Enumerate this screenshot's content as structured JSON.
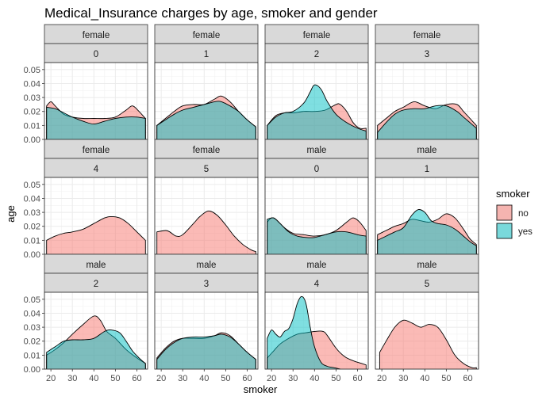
{
  "chart_data": {
    "type": "area",
    "title": "Medical_Insurance charges by age, smoker and gender",
    "xlabel": "smoker",
    "ylabel": "age",
    "xlim": [
      17,
      65
    ],
    "ylim": [
      0,
      0.055
    ],
    "x_ticks": [
      20,
      30,
      40,
      50,
      60
    ],
    "y_ticks": [
      0.0,
      0.01,
      0.02,
      0.03,
      0.04,
      0.05
    ],
    "y_tick_labels": [
      "0.00",
      "0.01",
      "0.02",
      "0.03",
      "0.04",
      "0.05"
    ],
    "grid": true,
    "legend": {
      "title": "smoker",
      "position": "right",
      "entries": [
        {
          "label": "no",
          "color": "#F8766D"
        },
        {
          "label": "yes",
          "color": "#00BFC4"
        }
      ]
    },
    "colors": {
      "no": "#F8766D",
      "yes": "#00BFC4"
    },
    "panels": [
      {
        "gender": "female",
        "children": "0",
        "series": [
          {
            "name": "no",
            "x": [
              18,
              20,
              22,
              26,
              30,
              35,
              40,
              45,
              50,
              55,
              58,
              61,
              64
            ],
            "y": [
              0.024,
              0.027,
              0.024,
              0.018,
              0.016,
              0.015,
              0.015,
              0.015,
              0.016,
              0.021,
              0.024,
              0.02,
              0.015
            ]
          },
          {
            "name": "yes",
            "x": [
              18,
              22,
              26,
              30,
              35,
              40,
              45,
              50,
              55,
              60,
              64
            ],
            "y": [
              0.023,
              0.022,
              0.019,
              0.016,
              0.013,
              0.011,
              0.013,
              0.015,
              0.016,
              0.016,
              0.015
            ]
          }
        ]
      },
      {
        "gender": "female",
        "children": "1",
        "series": [
          {
            "name": "no",
            "x": [
              18,
              22,
              26,
              30,
              35,
              40,
              45,
              48,
              52,
              56,
              60,
              64
            ],
            "y": [
              0.01,
              0.015,
              0.02,
              0.024,
              0.025,
              0.025,
              0.029,
              0.031,
              0.027,
              0.02,
              0.014,
              0.009
            ]
          },
          {
            "name": "yes",
            "x": [
              18,
              22,
              26,
              30,
              35,
              40,
              45,
              48,
              52,
              56,
              60,
              64
            ],
            "y": [
              0.01,
              0.014,
              0.018,
              0.021,
              0.023,
              0.025,
              0.027,
              0.027,
              0.024,
              0.02,
              0.014,
              0.009
            ]
          }
        ]
      },
      {
        "gender": "female",
        "children": "2",
        "series": [
          {
            "name": "no",
            "x": [
              18,
              22,
              26,
              30,
              35,
              40,
              45,
              50,
              52,
              55,
              58,
              61,
              64
            ],
            "y": [
              0.01,
              0.017,
              0.019,
              0.019,
              0.02,
              0.02,
              0.021,
              0.025,
              0.025,
              0.02,
              0.012,
              0.008,
              0.008
            ]
          },
          {
            "name": "yes",
            "x": [
              18,
              22,
              26,
              30,
              35,
              38,
              40,
              43,
              46,
              50,
              55,
              60,
              64
            ],
            "y": [
              0.01,
              0.016,
              0.019,
              0.02,
              0.026,
              0.034,
              0.039,
              0.036,
              0.027,
              0.018,
              0.012,
              0.008,
              0.006
            ]
          }
        ]
      },
      {
        "gender": "female",
        "children": "3",
        "series": [
          {
            "name": "no",
            "x": [
              18,
              22,
              26,
              30,
              35,
              40,
              45,
              50,
              55,
              58,
              61,
              64
            ],
            "y": [
              0.01,
              0.015,
              0.02,
              0.023,
              0.027,
              0.024,
              0.022,
              0.025,
              0.025,
              0.02,
              0.015,
              0.01
            ]
          },
          {
            "name": "yes",
            "x": [
              18,
              22,
              26,
              30,
              35,
              40,
              45,
              50,
              55,
              58,
              61,
              64
            ],
            "y": [
              0.005,
              0.012,
              0.018,
              0.021,
              0.022,
              0.022,
              0.024,
              0.024,
              0.02,
              0.016,
              0.012,
              0.008
            ]
          }
        ]
      },
      {
        "gender": "female",
        "children": "4",
        "series": [
          {
            "name": "no",
            "x": [
              18,
              22,
              26,
              30,
              35,
              40,
              45,
              48,
              52,
              56,
              60,
              64
            ],
            "y": [
              0.01,
              0.013,
              0.015,
              0.016,
              0.018,
              0.022,
              0.026,
              0.027,
              0.026,
              0.022,
              0.016,
              0.01
            ]
          }
        ]
      },
      {
        "gender": "female",
        "children": "5",
        "series": [
          {
            "name": "no",
            "x": [
              18,
              22,
              24,
              27,
              30,
              35,
              38,
              42,
              46,
              50,
              54,
              58,
              62,
              64
            ],
            "y": [
              0.016,
              0.017,
              0.016,
              0.013,
              0.014,
              0.022,
              0.027,
              0.031,
              0.028,
              0.021,
              0.013,
              0.007,
              0.003,
              0.002
            ]
          }
        ]
      },
      {
        "gender": "male",
        "children": "0",
        "series": [
          {
            "name": "no",
            "x": [
              18,
              20,
              22,
              26,
              30,
              35,
              40,
              45,
              50,
              55,
              58,
              61,
              64
            ],
            "y": [
              0.023,
              0.026,
              0.025,
              0.019,
              0.015,
              0.014,
              0.013,
              0.014,
              0.017,
              0.023,
              0.026,
              0.023,
              0.017
            ]
          },
          {
            "name": "yes",
            "x": [
              18,
              21,
              24,
              28,
              32,
              36,
              40,
              45,
              50,
              55,
              60,
              64
            ],
            "y": [
              0.025,
              0.026,
              0.022,
              0.016,
              0.013,
              0.012,
              0.012,
              0.014,
              0.016,
              0.016,
              0.014,
              0.013
            ]
          }
        ]
      },
      {
        "gender": "male",
        "children": "1",
        "series": [
          {
            "name": "no",
            "x": [
              18,
              22,
              26,
              30,
              34,
              38,
              42,
              46,
              50,
              54,
              58,
              61,
              64
            ],
            "y": [
              0.014,
              0.017,
              0.02,
              0.022,
              0.025,
              0.024,
              0.023,
              0.025,
              0.029,
              0.026,
              0.018,
              0.011,
              0.007
            ]
          },
          {
            "name": "yes",
            "x": [
              18,
              22,
              26,
              30,
              34,
              37,
              40,
              43,
              46,
              50,
              54,
              58,
              61,
              64
            ],
            "y": [
              0.01,
              0.013,
              0.016,
              0.019,
              0.028,
              0.032,
              0.03,
              0.024,
              0.022,
              0.021,
              0.018,
              0.013,
              0.009,
              0.006
            ]
          }
        ]
      },
      {
        "gender": "male",
        "children": "2",
        "series": [
          {
            "name": "no",
            "x": [
              18,
              22,
              26,
              30,
              35,
              40,
              43,
              46,
              50,
              55,
              60,
              64
            ],
            "y": [
              0.01,
              0.014,
              0.019,
              0.025,
              0.032,
              0.038,
              0.035,
              0.027,
              0.022,
              0.014,
              0.008,
              0.004
            ]
          },
          {
            "name": "yes",
            "x": [
              18,
              22,
              26,
              30,
              35,
              40,
              45,
              48,
              52,
              55,
              58,
              61,
              64
            ],
            "y": [
              0.012,
              0.016,
              0.02,
              0.021,
              0.021,
              0.022,
              0.027,
              0.028,
              0.026,
              0.02,
              0.013,
              0.008,
              0.004
            ]
          }
        ]
      },
      {
        "gender": "male",
        "children": "3",
        "series": [
          {
            "name": "no",
            "x": [
              18,
              22,
              26,
              30,
              35,
              40,
              45,
              48,
              52,
              56,
              60,
              64
            ],
            "y": [
              0.008,
              0.015,
              0.02,
              0.022,
              0.022,
              0.022,
              0.024,
              0.026,
              0.024,
              0.018,
              0.012,
              0.007
            ]
          },
          {
            "name": "yes",
            "x": [
              18,
              22,
              26,
              30,
              35,
              40,
              45,
              48,
              52,
              56,
              60,
              64
            ],
            "y": [
              0.007,
              0.014,
              0.019,
              0.022,
              0.023,
              0.023,
              0.024,
              0.025,
              0.023,
              0.018,
              0.012,
              0.007
            ]
          }
        ]
      },
      {
        "gender": "male",
        "children": "4",
        "series": [
          {
            "name": "no",
            "x": [
              18,
              21,
              24,
              28,
              32,
              36,
              40,
              44,
              46,
              50,
              54,
              58,
              62,
              64
            ],
            "y": [
              0.008,
              0.013,
              0.018,
              0.022,
              0.025,
              0.026,
              0.027,
              0.027,
              0.024,
              0.015,
              0.009,
              0.006,
              0.004,
              0.003
            ]
          },
          {
            "name": "yes",
            "x": [
              18,
              20,
              22,
              24,
              26,
              28,
              30,
              32,
              34,
              36,
              38,
              40,
              43,
              46,
              49,
              52
            ],
            "y": [
              0.022,
              0.028,
              0.025,
              0.023,
              0.027,
              0.029,
              0.036,
              0.047,
              0.052,
              0.047,
              0.03,
              0.016,
              0.005,
              0.002,
              0.001,
              0.0
            ]
          }
        ]
      },
      {
        "gender": "male",
        "children": "5",
        "series": [
          {
            "name": "no",
            "x": [
              19,
              22,
              26,
              30,
              34,
              38,
              42,
              46,
              50,
              54,
              58,
              62,
              64
            ],
            "y": [
              0.012,
              0.02,
              0.03,
              0.035,
              0.033,
              0.03,
              0.032,
              0.03,
              0.021,
              0.01,
              0.004,
              0.001,
              0.001
            ]
          }
        ]
      }
    ]
  }
}
